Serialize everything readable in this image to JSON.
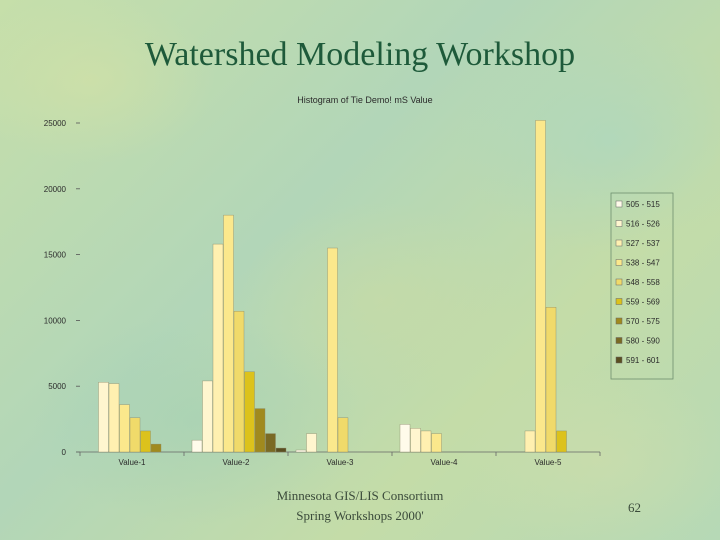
{
  "slide": {
    "title": "Watershed Modeling Workshop",
    "footer_line1": "Minnesota GIS/LIS Consortium",
    "footer_line2": "Spring Workshops 2000'",
    "page_number": "62"
  },
  "chart_data": {
    "type": "bar",
    "title": "Histogram of Tie Demo! mS Value",
    "categories": [
      "Value-1",
      "Value-2",
      "Value-3",
      "Value-4",
      "Value-5"
    ],
    "y_ticks": [
      "0",
      "5000",
      "10000",
      "15000",
      "20000",
      "25000"
    ],
    "ylim": [
      0,
      25000
    ],
    "legend_position": "right",
    "series": [
      {
        "name": "505 - 515",
        "color": "#fffbea",
        "values": [
          0,
          900,
          150,
          2100,
          0
        ]
      },
      {
        "name": "516 - 526",
        "color": "#fff6cf",
        "values": [
          5300,
          5400,
          1400,
          1800,
          0
        ]
      },
      {
        "name": "527 - 537",
        "color": "#fff0b0",
        "values": [
          5200,
          15800,
          0,
          1600,
          1600
        ]
      },
      {
        "name": "538 - 547",
        "color": "#fbe88c",
        "values": [
          3600,
          18000,
          15500,
          1400,
          25200
        ]
      },
      {
        "name": "548 - 558",
        "color": "#f0da6a",
        "values": [
          2600,
          10700,
          2600,
          0,
          11000
        ]
      },
      {
        "name": "559 - 569",
        "color": "#dcc21c",
        "values": [
          1600,
          6100,
          0,
          0,
          1600
        ]
      },
      {
        "name": "570 - 575",
        "color": "#a08a1e",
        "values": [
          600,
          3300,
          0,
          0,
          0
        ]
      },
      {
        "name": "580 - 590",
        "color": "#7a6a24",
        "values": [
          0,
          1400,
          0,
          0,
          0
        ]
      },
      {
        "name": "591 - 601",
        "color": "#5a4e20",
        "values": [
          0,
          300,
          0,
          0,
          0
        ]
      }
    ]
  }
}
